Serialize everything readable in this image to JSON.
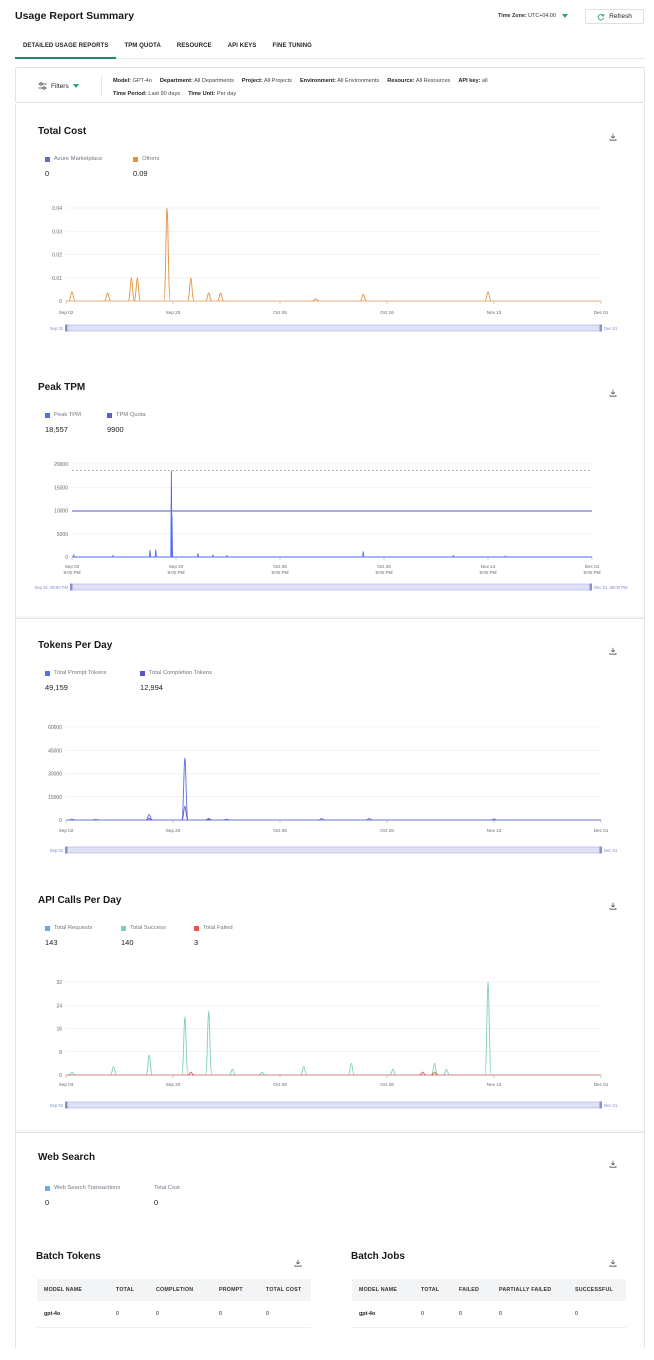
{
  "header": {
    "title": "Usage Report Summary",
    "time_zone_label": "Time Zone:",
    "time_zone_value": "UTC+04:00",
    "refresh_label": "Refresh"
  },
  "tabs": [
    {
      "label": "DETAILED USAGE REPORTS",
      "active": true
    },
    {
      "label": "TPM QUOTA",
      "active": false
    },
    {
      "label": "RESOURCE",
      "active": false
    },
    {
      "label": "API KEYS",
      "active": false
    },
    {
      "label": "FINE TUNING",
      "active": false
    }
  ],
  "filters": {
    "button_label": "Filters",
    "items": [
      {
        "key": "Model:",
        "value": "GPT-4o"
      },
      {
        "key": "Department:",
        "value": "All Departments"
      },
      {
        "key": "Project:",
        "value": "All Projects"
      },
      {
        "key": "Environment:",
        "value": "All Environments"
      },
      {
        "key": "Resource:",
        "value": "All Resources"
      },
      {
        "key": "API key:",
        "value": "all"
      },
      {
        "key": "Time Period:",
        "value": "Last 90 days"
      },
      {
        "key": "Time Unit:",
        "value": "Per day"
      }
    ]
  },
  "colors": {
    "accent": "#1f8a70",
    "caret": "#2aa57a",
    "azure": "#5b6bd6",
    "others": "#e3913f",
    "peak_tpm": "#4f6ef2",
    "tpm_quota": "#5b5fd0",
    "prompt": "#5b6fe0",
    "completion": "#5a55c8",
    "requests": "#6ea5e8",
    "success": "#7fd1b3",
    "failed": "#e85454",
    "web_search": "#6aace6"
  },
  "total_cost": {
    "title": "Total Cost",
    "legend": [
      {
        "label": "Azure Marketplace",
        "value": "0",
        "color": "#5b6bd6"
      },
      {
        "label": "Others",
        "value": "0.09",
        "color": "#e3913f"
      }
    ],
    "slider_start": "Sep 02",
    "slider_end": "Dec 01"
  },
  "peak_tpm": {
    "title": "Peak TPM",
    "legend": [
      {
        "label": "Peak TPM",
        "value": "18,557",
        "color": "#4f6ef2"
      },
      {
        "label": "TPM Quota",
        "value": "9900",
        "color": "#5b5fd0"
      }
    ],
    "slider_start": "Sep 02, 08:00 PM",
    "slider_end": "Dec 01, 08:00 PM"
  },
  "tokens_per_day": {
    "title": "Tokens Per Day",
    "legend": [
      {
        "label": "Total Prompt Tokens",
        "value": "49,159",
        "color": "#5b6fe0"
      },
      {
        "label": "Total Completion Tokens",
        "value": "12,994",
        "color": "#5a55c8"
      }
    ],
    "slider_start": "Sep 02",
    "slider_end": "Dec 01"
  },
  "api_calls_per_day": {
    "title": "API Calls Per Day",
    "legend": [
      {
        "label": "Total Requests",
        "value": "143",
        "color": "#6ea5e8"
      },
      {
        "label": "Total Success",
        "value": "140",
        "color": "#7fd1b3"
      },
      {
        "label": "Total Failed",
        "value": "3",
        "color": "#e85454"
      }
    ],
    "slider_start": "Sep 02",
    "slider_end": "Dec 01"
  },
  "web_search": {
    "title": "Web Search",
    "legend": [
      {
        "label": "Web Search Transactions",
        "value": "0",
        "color": "#6aace6"
      },
      {
        "label": "Total Cost",
        "value": "0",
        "color": ""
      }
    ]
  },
  "batch_tokens": {
    "title": "Batch Tokens",
    "columns": [
      "MODEL NAME",
      "TOTAL",
      "COMPLETION",
      "PROMPT",
      "TOTAL COST"
    ],
    "rows": [
      [
        "gpt-4o",
        "0",
        "0",
        "0",
        "0"
      ]
    ]
  },
  "batch_jobs": {
    "title": "Batch Jobs",
    "columns": [
      "MODEL NAME",
      "TOTAL",
      "FAILED",
      "PARTIALLY FAILED",
      "SUCCESSFUL"
    ],
    "rows": [
      [
        "gpt-4o",
        "0",
        "0",
        "0",
        "0"
      ]
    ]
  },
  "chart_data": [
    {
      "type": "area",
      "title": "Total Cost",
      "x_ticks": [
        "Sep 02",
        "Sep 20",
        "Oct 08",
        "Oct 26",
        "Nov 13",
        "Dec 01"
      ],
      "y_ticks": [
        "0",
        "0.01",
        "0.02",
        "0.03",
        "0.04"
      ],
      "ylim": [
        0,
        0.04
      ],
      "x_range_days": [
        0,
        90
      ],
      "series": [
        {
          "name": "Azure Marketplace",
          "points": []
        },
        {
          "name": "Others",
          "points": [
            [
              1,
              0.004
            ],
            [
              7,
              0.0035
            ],
            [
              11,
              0.01
            ],
            [
              12,
              0.01
            ],
            [
              17,
              0.04
            ],
            [
              21,
              0.01
            ],
            [
              24,
              0.0035
            ],
            [
              26,
              0.0035
            ],
            [
              42,
              0.001
            ],
            [
              50,
              0.003
            ],
            [
              71,
              0.004
            ]
          ]
        }
      ]
    },
    {
      "type": "line",
      "title": "Peak TPM",
      "x_ticks": [
        "Sep 02\n8:00 PM",
        "Sep 20\n8:00 PM",
        "Oct 08\n8:00 PM",
        "Oct 26\n8:00 PM",
        "Nov 13\n8:00 PM",
        "Dec 01\n8:00 PM"
      ],
      "y_ticks": [
        "0",
        "5000",
        "10000",
        "15000",
        "20000"
      ],
      "ylim": [
        0,
        20000
      ],
      "series": [
        {
          "name": "Peak TPM",
          "points": [
            [
              0.3,
              400
            ],
            [
              7.1,
              300
            ],
            [
              13.5,
              1500
            ],
            [
              14.5,
              1600
            ],
            [
              17.2,
              18557
            ],
            [
              17.3,
              9000
            ],
            [
              21.8,
              800
            ],
            [
              24.4,
              400
            ],
            [
              26.8,
              300
            ],
            [
              50.4,
              1200
            ],
            [
              66,
              300
            ],
            [
              75,
              200
            ]
          ]
        },
        {
          "name": "TPM Quota",
          "value": 9900
        }
      ],
      "reference_line": 18557
    },
    {
      "type": "area",
      "title": "Tokens Per Day",
      "x_ticks": [
        "Sep 02",
        "Sep 20",
        "Oct 08",
        "Oct 26",
        "Nov 13",
        "Dec 01"
      ],
      "y_ticks": [
        "0",
        "15000",
        "30000",
        "45000",
        "60000"
      ],
      "ylim": [
        0,
        60000
      ],
      "series": [
        {
          "name": "Total Prompt Tokens",
          "points": [
            [
              1,
              500
            ],
            [
              5,
              400
            ],
            [
              14,
              3500
            ],
            [
              20,
              40000
            ],
            [
              24,
              1000
            ],
            [
              27,
              500
            ],
            [
              43,
              1000
            ],
            [
              51,
              1000
            ],
            [
              72,
              700
            ]
          ]
        },
        {
          "name": "Total Completion Tokens",
          "points": [
            [
              14,
              1000
            ],
            [
              20,
              9000
            ],
            [
              24,
              500
            ]
          ]
        }
      ]
    },
    {
      "type": "area",
      "title": "API Calls Per Day",
      "x_ticks": [
        "Sep 03",
        "Sep 20",
        "Oct 08",
        "Oct 26",
        "Nov 13",
        "Dec 01"
      ],
      "y_ticks": [
        "0",
        "8",
        "16",
        "24",
        "32"
      ],
      "ylim": [
        0,
        32
      ],
      "series": [
        {
          "name": "Total Success",
          "points": [
            [
              1,
              1
            ],
            [
              8,
              3
            ],
            [
              14,
              7
            ],
            [
              20,
              20
            ],
            [
              24,
              22
            ],
            [
              28,
              2
            ],
            [
              33,
              1
            ],
            [
              40,
              3
            ],
            [
              48,
              4
            ],
            [
              55,
              2
            ],
            [
              62,
              4
            ],
            [
              64,
              2
            ],
            [
              71,
              32
            ]
          ]
        },
        {
          "name": "Total Failed",
          "points": [
            [
              21,
              1
            ],
            [
              60,
              1
            ],
            [
              62,
              1
            ]
          ]
        }
      ]
    }
  ]
}
